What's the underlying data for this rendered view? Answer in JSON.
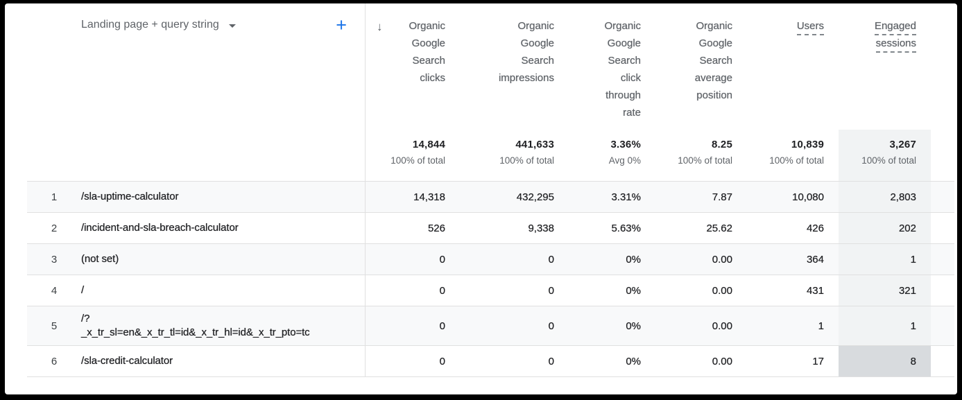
{
  "table": {
    "dimension_header": {
      "label": "Landing page + query string",
      "add_button_label": "+"
    },
    "sort": {
      "column": "Organic Google Search clicks",
      "direction": "descending",
      "icon": "↓"
    },
    "columns": [
      {
        "label": "Organic Google Search clicks",
        "sorted": true,
        "total": "14,844",
        "total_sub": "100% of total"
      },
      {
        "label": "Organic Google Search impressions",
        "total": "441,633",
        "total_sub": "100% of total"
      },
      {
        "label": "Organic Google Search click through rate",
        "total": "3.36%",
        "total_sub": "Avg 0%"
      },
      {
        "label": "Organic Google Search average position",
        "total": "8.25",
        "total_sub": "100% of total"
      },
      {
        "label": "Users",
        "dashed_underline": true,
        "total": "10,839",
        "total_sub": "100% of total"
      },
      {
        "label": "Engaged sessions",
        "dashed_underline": true,
        "column_highlight": true,
        "total": "3,267",
        "total_sub": "100% of total"
      }
    ],
    "rows": [
      {
        "index": "1",
        "dimension": "/sla-uptime-calculator",
        "values": [
          "14,318",
          "432,295",
          "3.31%",
          "7.87",
          "10,080",
          "2,803"
        ]
      },
      {
        "index": "2",
        "dimension": "/incident-and-sla-breach-calculator",
        "values": [
          "526",
          "9,338",
          "5.63%",
          "25.62",
          "426",
          "202"
        ]
      },
      {
        "index": "3",
        "dimension": "(not set)",
        "values": [
          "0",
          "0",
          "0%",
          "0.00",
          "364",
          "1"
        ]
      },
      {
        "index": "4",
        "dimension": "/",
        "values": [
          "0",
          "0",
          "0%",
          "0.00",
          "431",
          "321"
        ]
      },
      {
        "index": "5",
        "dimension": "/?\n_x_tr_sl=en&_x_tr_tl=id&_x_tr_hl=id&_x_tr_pto=tc",
        "values": [
          "0",
          "0",
          "0%",
          "0.00",
          "1",
          "1"
        ]
      },
      {
        "index": "6",
        "dimension": "/sla-credit-calculator",
        "values": [
          "0",
          "0",
          "0%",
          "0.00",
          "17",
          "8"
        ]
      }
    ],
    "hovered_cell": {
      "row_index": 6,
      "column": "Engaged sessions"
    }
  },
  "colors": {
    "accent_blue": "#1a73e8",
    "header_text": "#5f6368",
    "data_text": "#202124",
    "row_stripe": "#f8f9fa",
    "column_highlight": "#f1f3f4",
    "hovered_cell": "#d8dbde",
    "divider": "#e0e0e0",
    "frame": "#000000"
  }
}
